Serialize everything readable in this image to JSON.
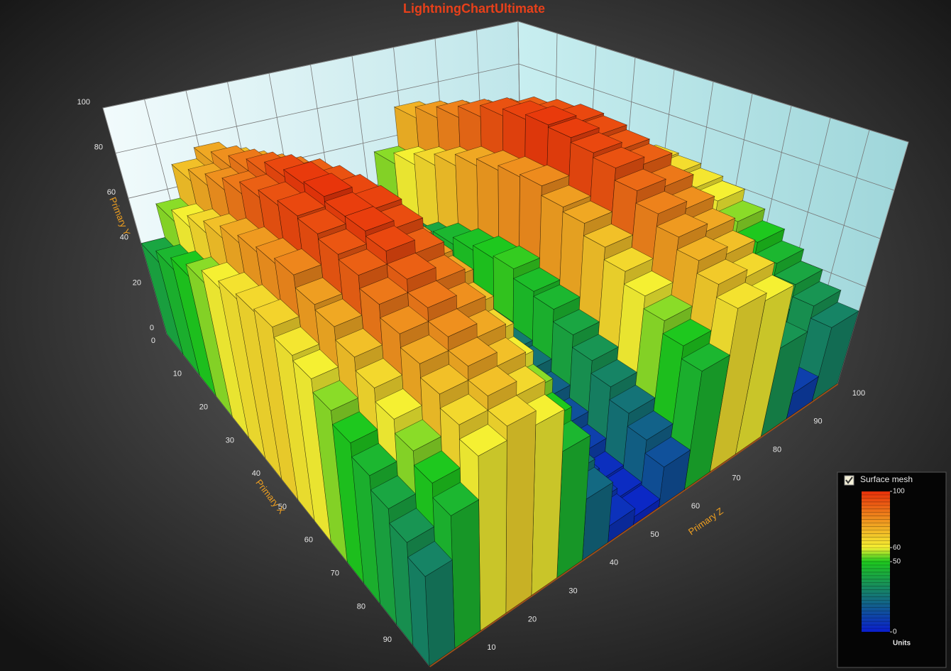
{
  "chart_data": {
    "type": "bar3d",
    "title": "LightningChartUltimate",
    "x_label": "Primary X",
    "y_label": "Primary Y",
    "z_label": "Primary Z",
    "xlim": [
      0,
      100
    ],
    "ylim": [
      0,
      100
    ],
    "zlim": [
      0,
      100
    ],
    "xticks": [
      0,
      10,
      20,
      30,
      40,
      50,
      60,
      70,
      80,
      90
    ],
    "yticks": [
      0,
      20,
      40,
      60,
      80,
      100
    ],
    "zticks": [
      10,
      20,
      30,
      40,
      50,
      60,
      70,
      80,
      90,
      100
    ],
    "grid": true,
    "x": [
      3.125,
      9.375,
      15.625,
      21.875,
      28.125,
      34.375,
      40.625,
      46.875,
      53.125,
      59.375,
      65.625,
      71.875,
      78.125,
      84.375,
      90.625,
      96.875
    ],
    "z": [
      3.125,
      9.375,
      15.625,
      21.875,
      28.125,
      34.375,
      40.625,
      46.875,
      53.125,
      59.375,
      65.625,
      71.875,
      78.125,
      84.375,
      90.625,
      96.875
    ],
    "values": [
      [
        40,
        55,
        70,
        75,
        70,
        55,
        30,
        10,
        5,
        25,
        55,
        73,
        70,
        45,
        15,
        40
      ],
      [
        45,
        60,
        75,
        80,
        75,
        60,
        35,
        15,
        10,
        30,
        60,
        78,
        75,
        50,
        20,
        45
      ],
      [
        50,
        65,
        80,
        85,
        80,
        65,
        40,
        20,
        15,
        35,
        65,
        83,
        80,
        55,
        25,
        50
      ],
      [
        55,
        70,
        85,
        90,
        85,
        70,
        45,
        25,
        20,
        40,
        70,
        88,
        85,
        60,
        30,
        55
      ],
      [
        60,
        75,
        90,
        95,
        90,
        75,
        50,
        30,
        25,
        45,
        75,
        93,
        90,
        65,
        35,
        60
      ],
      [
        63,
        78,
        93,
        98,
        93,
        78,
        53,
        33,
        28,
        48,
        78,
        96,
        93,
        68,
        38,
        63
      ],
      [
        65,
        80,
        95,
        99,
        95,
        80,
        55,
        35,
        30,
        50,
        80,
        98,
        95,
        70,
        40,
        65
      ],
      [
        66,
        82,
        94,
        97,
        96,
        79,
        54,
        36,
        29,
        51,
        81,
        97,
        94,
        71,
        41,
        64
      ],
      [
        62,
        77,
        92,
        97,
        94,
        77,
        52,
        32,
        27,
        47,
        77,
        95,
        92,
        67,
        37,
        62
      ],
      [
        60,
        75,
        90,
        95,
        90,
        75,
        50,
        30,
        25,
        45,
        75,
        93,
        90,
        65,
        35,
        60
      ],
      [
        55,
        70,
        85,
        90,
        85,
        70,
        45,
        25,
        20,
        40,
        70,
        88,
        85,
        60,
        30,
        55
      ],
      [
        50,
        65,
        80,
        85,
        80,
        65,
        40,
        20,
        15,
        35,
        65,
        83,
        80,
        55,
        25,
        50
      ],
      [
        45,
        60,
        75,
        80,
        75,
        60,
        35,
        15,
        10,
        30,
        60,
        78,
        75,
        50,
        20,
        45
      ],
      [
        40,
        55,
        70,
        75,
        70,
        55,
        30,
        10,
        5,
        25,
        55,
        73,
        70,
        45,
        15,
        40
      ],
      [
        35,
        50,
        65,
        70,
        65,
        50,
        25,
        8,
        4,
        20,
        50,
        68,
        65,
        40,
        12,
        35
      ],
      [
        30,
        45,
        60,
        65,
        60,
        45,
        22,
        6,
        3,
        15,
        45,
        63,
        60,
        35,
        10,
        30
      ]
    ],
    "palette": [
      {
        "value": 0,
        "color": "#0a1ed0"
      },
      {
        "value": 50,
        "color": "#1ec81e"
      },
      {
        "value": 60,
        "color": "#f5f032"
      },
      {
        "value": 100,
        "color": "#e8300a"
      }
    ],
    "legend": {
      "title": "Surface mesh",
      "unit": "Units"
    }
  }
}
